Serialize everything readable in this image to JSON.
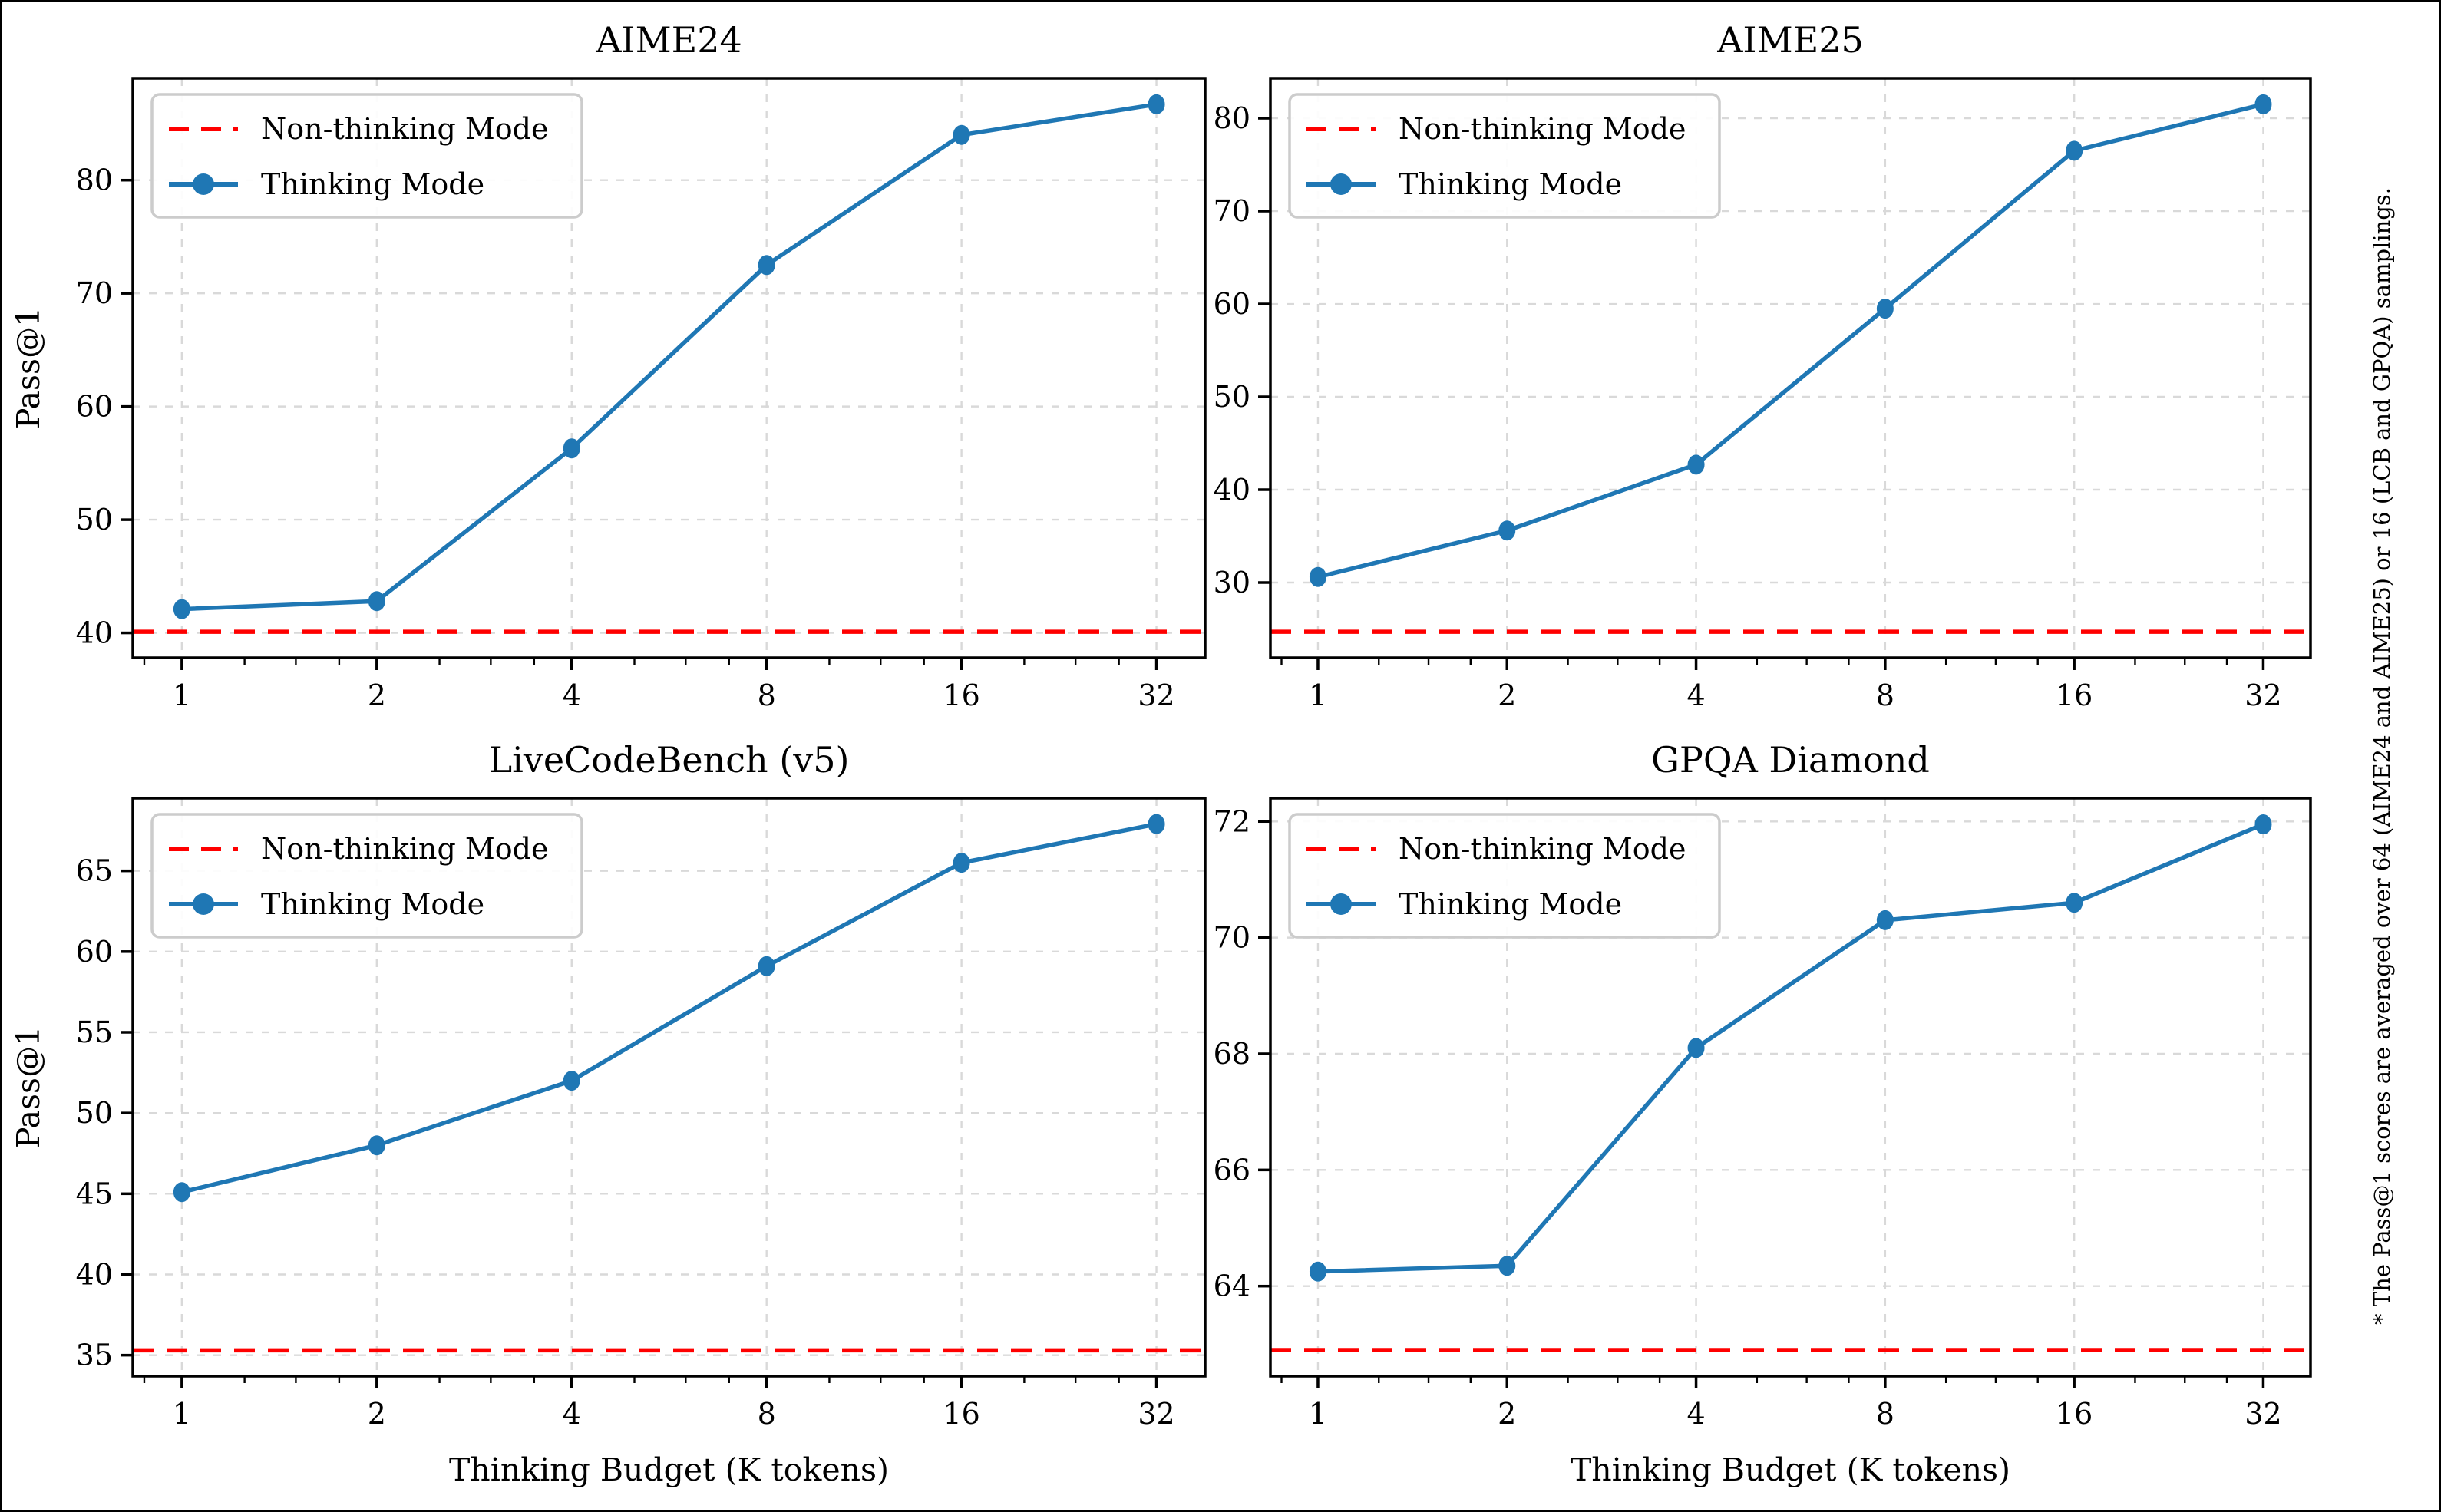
{
  "figure": {
    "xlabel": "Thinking Budget (K tokens)",
    "ylabel": "Pass@1",
    "side_note": "* The Pass@1 scores are averaged over 64 (AIME24 and AIME25) or 16 (LCB and GPQA) samplings.",
    "legend": {
      "non_thinking": "Non-thinking Mode",
      "thinking": "Thinking Mode"
    },
    "colors": {
      "thinking_line": "#1f77b4",
      "non_thinking_line": "#ff0000",
      "grid": "#d9d9d9",
      "axis": "#000000",
      "legend_border": "#cccccc"
    }
  },
  "chart_data": [
    {
      "type": "line",
      "title": "AIME24",
      "xscale": "log2",
      "x": [
        1,
        2,
        4,
        8,
        16,
        32
      ],
      "xlim": [
        0.84,
        38.05
      ],
      "ylim": [
        37.8,
        89.0
      ],
      "yticks": [
        40,
        50,
        60,
        70,
        80
      ],
      "grid": true,
      "legend_position": "upper left",
      "series": [
        {
          "name": "Thinking Mode",
          "style": "line+marker",
          "values": [
            42.1,
            42.8,
            56.3,
            72.5,
            84.0,
            86.7
          ]
        },
        {
          "name": "Non-thinking Mode",
          "style": "dashed-hline",
          "value": 40.1
        }
      ]
    },
    {
      "type": "line",
      "title": "AIME25",
      "xscale": "log2",
      "x": [
        1,
        2,
        4,
        8,
        16,
        32
      ],
      "xlim": [
        0.84,
        38.05
      ],
      "ylim": [
        21.9,
        84.3
      ],
      "yticks": [
        30,
        40,
        50,
        60,
        70,
        80
      ],
      "grid": true,
      "legend_position": "upper left",
      "series": [
        {
          "name": "Thinking Mode",
          "style": "line+marker",
          "values": [
            30.6,
            35.6,
            42.7,
            59.5,
            76.5,
            81.5
          ]
        },
        {
          "name": "Non-thinking Mode",
          "style": "dashed-hline",
          "value": 24.7
        }
      ]
    },
    {
      "type": "line",
      "title": "LiveCodeBench (v5)",
      "xscale": "log2",
      "x": [
        1,
        2,
        4,
        8,
        16,
        32
      ],
      "xlim": [
        0.84,
        38.05
      ],
      "ylim": [
        33.7,
        69.5
      ],
      "yticks": [
        35,
        40,
        45,
        50,
        55,
        60,
        65
      ],
      "grid": true,
      "legend_position": "upper left",
      "series": [
        {
          "name": "Thinking Mode",
          "style": "line+marker",
          "values": [
            45.1,
            48.0,
            52.0,
            59.1,
            65.5,
            67.9
          ]
        },
        {
          "name": "Non-thinking Mode",
          "style": "dashed-hline",
          "value": 35.3
        }
      ]
    },
    {
      "type": "line",
      "title": "GPQA Diamond",
      "xscale": "log2",
      "x": [
        1,
        2,
        4,
        8,
        16,
        32
      ],
      "xlim": [
        0.84,
        38.05
      ],
      "ylim": [
        62.45,
        72.4
      ],
      "yticks": [
        64,
        66,
        68,
        70,
        72
      ],
      "grid": true,
      "legend_position": "upper left",
      "series": [
        {
          "name": "Thinking Mode",
          "style": "line+marker",
          "values": [
            64.25,
            64.35,
            68.1,
            70.3,
            70.6,
            71.95
          ]
        },
        {
          "name": "Non-thinking Mode",
          "style": "dashed-hline",
          "value": 62.9
        }
      ]
    }
  ]
}
